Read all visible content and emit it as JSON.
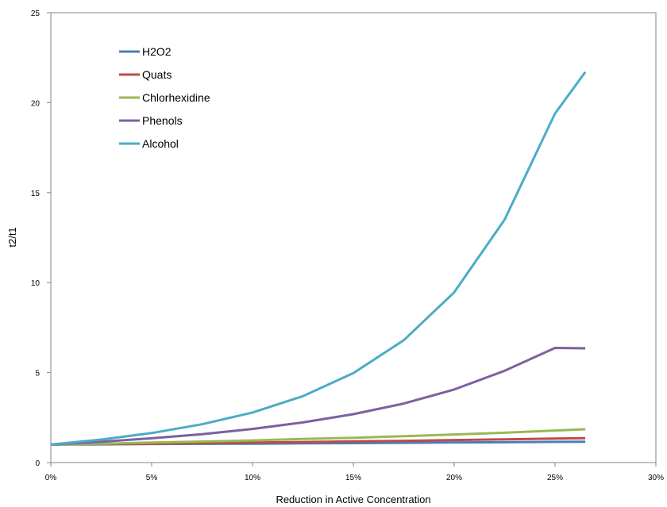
{
  "chart_data": {
    "type": "line",
    "xlabel": "Reduction in Active Concentration",
    "ylabel": "t2/t1",
    "xlim": [
      0,
      0.3
    ],
    "ylim": [
      0,
      25
    ],
    "x_ticks": [
      {
        "value": 0.0,
        "label": "0%"
      },
      {
        "value": 0.05,
        "label": "5%"
      },
      {
        "value": 0.1,
        "label": "10%"
      },
      {
        "value": 0.15,
        "label": "15%"
      },
      {
        "value": 0.2,
        "label": "20%"
      },
      {
        "value": 0.25,
        "label": "25%"
      },
      {
        "value": 0.3,
        "label": "30%"
      }
    ],
    "y_ticks": [
      {
        "value": 0,
        "label": "0"
      },
      {
        "value": 5,
        "label": "5"
      },
      {
        "value": 10,
        "label": "10"
      },
      {
        "value": 15,
        "label": "15"
      },
      {
        "value": 20,
        "label": "20"
      },
      {
        "value": 25,
        "label": "25"
      }
    ],
    "grid": false,
    "legend_position": "top-left",
    "x": [
      0.0,
      0.025,
      0.05,
      0.075,
      0.1,
      0.125,
      0.15,
      0.175,
      0.2,
      0.225,
      0.25,
      0.265
    ],
    "series": [
      {
        "name": "H2O2",
        "color": "#4a7ebb",
        "values": [
          1.0,
          1.01,
          1.03,
          1.04,
          1.05,
          1.07,
          1.08,
          1.1,
          1.12,
          1.13,
          1.15,
          1.16
        ]
      },
      {
        "name": "Quats",
        "color": "#be4b48",
        "values": [
          1.0,
          1.03,
          1.05,
          1.08,
          1.11,
          1.14,
          1.18,
          1.21,
          1.25,
          1.29,
          1.33,
          1.36
        ]
      },
      {
        "name": "Chlorhexidine",
        "color": "#98b954",
        "values": [
          1.0,
          1.05,
          1.11,
          1.17,
          1.23,
          1.31,
          1.38,
          1.47,
          1.56,
          1.66,
          1.78,
          1.85
        ]
      },
      {
        "name": "Phenols",
        "color": "#7d60a0",
        "values": [
          1.0,
          1.16,
          1.35,
          1.58,
          1.87,
          2.23,
          2.69,
          3.28,
          4.06,
          5.1,
          6.37,
          6.35
        ]
      },
      {
        "name": "Alcohol",
        "color": "#4bacc6",
        "values": [
          1.0,
          1.28,
          1.64,
          2.13,
          2.78,
          3.69,
          4.97,
          6.8,
          9.46,
          13.5,
          19.4,
          21.7
        ]
      }
    ]
  }
}
